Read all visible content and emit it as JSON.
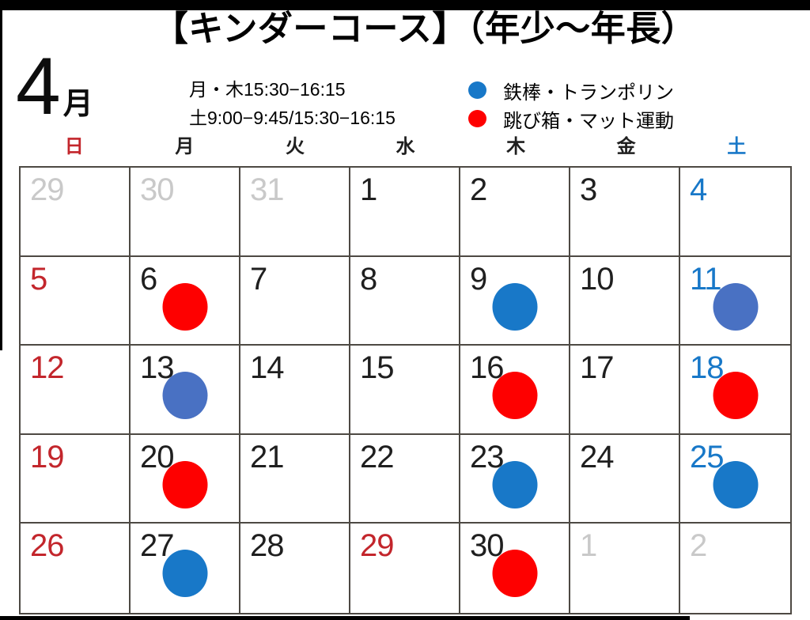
{
  "header": {
    "title": "【キンダーコース】（年少～年長）",
    "month_number": "4",
    "month_suffix": "月",
    "schedule_lines": [
      "月・木15:30−16:15",
      "土9:00−9:45/15:30−16:15"
    ],
    "legend": [
      {
        "icon": "blue-dot-icon",
        "color_key": "dot_blue",
        "label": "鉄棒・トランポリン"
      },
      {
        "icon": "red-dot-icon",
        "color_key": "dot_red",
        "label": "跳び箱・マット運動"
      }
    ]
  },
  "palette": {
    "text_black": "#1f1f1f",
    "text_red": "#c3262c",
    "text_blue": "#1878c8",
    "text_muted": "#c9c9c9",
    "dot_red": "#fe0000",
    "dot_blue": "#1878c8",
    "dot_lightblue": "#4971c3",
    "grid_line": "#4d4943",
    "frame_black": "#000000"
  },
  "calendar": {
    "weekdays": [
      {
        "label": "日",
        "color_key": "text_red"
      },
      {
        "label": "月",
        "color_key": "text_black"
      },
      {
        "label": "火",
        "color_key": "text_black"
      },
      {
        "label": "水",
        "color_key": "text_black"
      },
      {
        "label": "木",
        "color_key": "text_black"
      },
      {
        "label": "金",
        "color_key": "text_black"
      },
      {
        "label": "土",
        "color_key": "text_blue"
      }
    ],
    "weeks": [
      [
        {
          "day": "29",
          "color_key": "text_muted"
        },
        {
          "day": "30",
          "color_key": "text_muted"
        },
        {
          "day": "31",
          "color_key": "text_muted"
        },
        {
          "day": "1",
          "color_key": "text_black"
        },
        {
          "day": "2",
          "color_key": "text_black"
        },
        {
          "day": "3",
          "color_key": "text_black"
        },
        {
          "day": "4",
          "color_key": "text_blue"
        }
      ],
      [
        {
          "day": "5",
          "color_key": "text_red"
        },
        {
          "day": "6",
          "color_key": "text_black",
          "dot": "dot_red"
        },
        {
          "day": "7",
          "color_key": "text_black"
        },
        {
          "day": "8",
          "color_key": "text_black"
        },
        {
          "day": "9",
          "color_key": "text_black",
          "dot": "dot_blue"
        },
        {
          "day": "10",
          "color_key": "text_black"
        },
        {
          "day": "11",
          "color_key": "text_blue",
          "dot": "dot_lightblue"
        }
      ],
      [
        {
          "day": "12",
          "color_key": "text_red"
        },
        {
          "day": "13",
          "color_key": "text_black",
          "dot": "dot_lightblue"
        },
        {
          "day": "14",
          "color_key": "text_black"
        },
        {
          "day": "15",
          "color_key": "text_black"
        },
        {
          "day": "16",
          "color_key": "text_black",
          "dot": "dot_red"
        },
        {
          "day": "17",
          "color_key": "text_black"
        },
        {
          "day": "18",
          "color_key": "text_blue",
          "dot": "dot_red"
        }
      ],
      [
        {
          "day": "19",
          "color_key": "text_red"
        },
        {
          "day": "20",
          "color_key": "text_black",
          "dot": "dot_red"
        },
        {
          "day": "21",
          "color_key": "text_black"
        },
        {
          "day": "22",
          "color_key": "text_black"
        },
        {
          "day": "23",
          "color_key": "text_black",
          "dot": "dot_blue"
        },
        {
          "day": "24",
          "color_key": "text_black"
        },
        {
          "day": "25",
          "color_key": "text_blue",
          "dot": "dot_blue"
        }
      ],
      [
        {
          "day": "26",
          "color_key": "text_red"
        },
        {
          "day": "27",
          "color_key": "text_black",
          "dot": "dot_blue"
        },
        {
          "day": "28",
          "color_key": "text_black"
        },
        {
          "day": "29",
          "color_key": "text_red"
        },
        {
          "day": "30",
          "color_key": "text_black",
          "dot": "dot_red"
        },
        {
          "day": "1",
          "color_key": "text_muted"
        },
        {
          "day": "2",
          "color_key": "text_muted"
        }
      ]
    ]
  }
}
